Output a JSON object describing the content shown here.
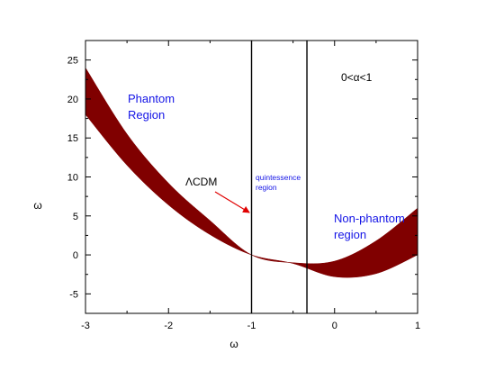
{
  "chart_data": {
    "type": "area",
    "xlabel": "ω",
    "ylabel": "ω",
    "xlim": [
      -3,
      1
    ],
    "ylim": [
      -7.5,
      27.5
    ],
    "x_ticks": [
      -3,
      -2,
      -1,
      0,
      1
    ],
    "y_ticks": [
      -5,
      0,
      5,
      10,
      15,
      20,
      25
    ],
    "grid": false,
    "band_color": "#800000",
    "band": {
      "x": [
        -3.0,
        -2.5,
        -2.0,
        -1.5,
        -1.0,
        -0.5,
        0.0,
        0.5,
        1.0
      ],
      "upper": [
        24.0,
        15.5,
        9.2,
        4.4,
        0.0,
        -1.0,
        -0.8,
        1.8,
        6.0
      ],
      "lower": [
        18.0,
        11.5,
        6.4,
        2.6,
        0.0,
        -1.1,
        -2.8,
        -2.4,
        0.0
      ]
    },
    "vertical_lines": [
      -1.0,
      -0.333
    ],
    "annotations": [
      {
        "text": "Phantom",
        "x": -2.5,
        "y": 20.2
      },
      {
        "text": "Region",
        "x": -2.5,
        "y": 17.8
      },
      {
        "text": "ΛCDM",
        "x": -1.8,
        "y": 9.3
      },
      {
        "text": "quintessence",
        "x": -0.96,
        "y": 9.7
      },
      {
        "text": "region",
        "x": -0.96,
        "y": 8.3
      },
      {
        "text": "Non-phantom",
        "x": -0.02,
        "y": 4.3
      },
      {
        "text": "region",
        "x": -0.02,
        "y": 2.0
      },
      {
        "text": "0<α<1",
        "x": 0.05,
        "y": 22.5
      }
    ]
  },
  "colors": {
    "band": "#800000",
    "annotation_text": "#1414e6",
    "arrow": "#e00000"
  }
}
